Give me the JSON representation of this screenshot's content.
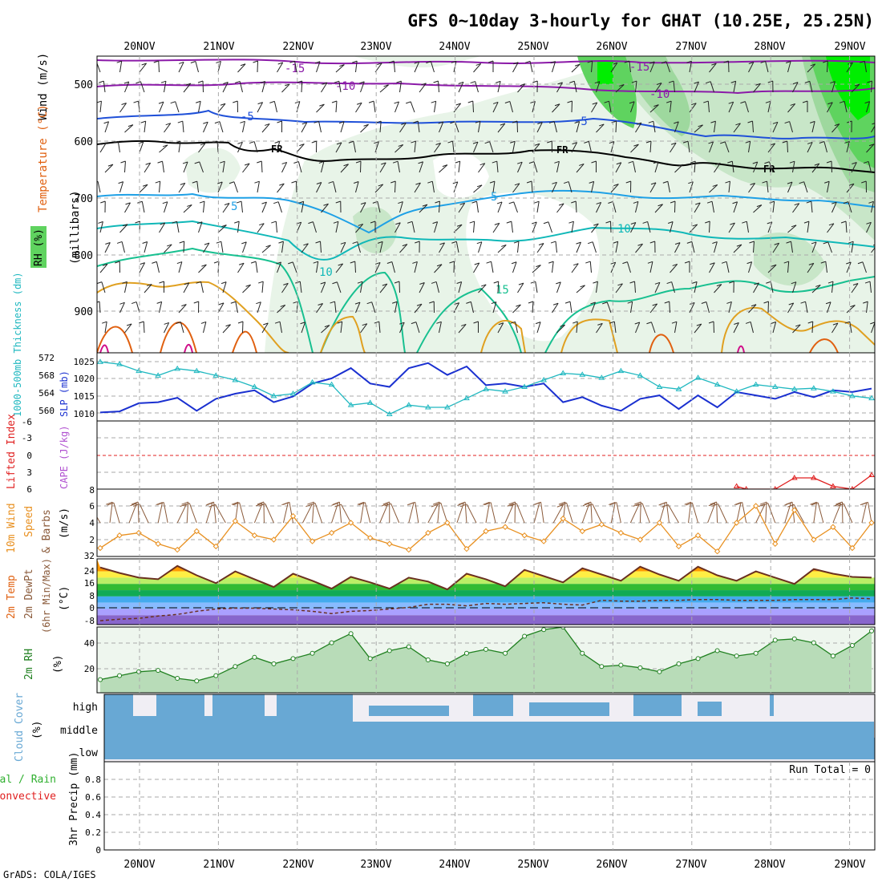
{
  "title": "GFS 0~10day 3-hourly for GHAT (10.25E, 25.25N)",
  "credit": "GrADS: COLA/IGES",
  "colors": {
    "frame": "#000000",
    "grid": "#aaaaaa",
    "rh_light": "#e8f4e8",
    "rh_mid": "#c8e6c8",
    "rh_dark": "#9ed89e",
    "rh_green": "#5fd35f",
    "rh_bright": "#00ee00",
    "temp_purple": "#8b1aa8",
    "temp_blue": "#1f50d8",
    "temp_lightblue": "#1ea0e6",
    "temp_cyan": "#10b8b8",
    "temp_teal": "#18c090",
    "temp_orange": "#e0a020",
    "temp_darkorange": "#e06010",
    "temp_magenta": "#d0108a",
    "slp": "#1a30d0",
    "thickness": "#20b8c0",
    "li": "#e02020",
    "cape": "#b050d0",
    "wind10": "#e89020",
    "barb10": "#8a5a3a",
    "rh2m_line": "#208020",
    "rh2m_fill": "#b8dcb8",
    "cloud": "#68a8d4",
    "cloud_bg": "#f0eef4",
    "precip_total": "#30b030",
    "precip_conv": "#e02020"
  },
  "x_axis": {
    "dates": [
      "20NOV",
      "21NOV",
      "22NOV",
      "23NOV",
      "24NOV",
      "25NOV",
      "26NOV",
      "27NOV",
      "28NOV",
      "29NOV"
    ]
  },
  "panels": {
    "upper": {
      "ylabel_wind": "Wind (m/s)",
      "ylabel_temp": "Temperature (°C)",
      "ylabel_pressure": "(millibars)",
      "ylabel_rh": "RH (%)",
      "y_ticks": [
        "500",
        "600",
        "700",
        "800",
        "900"
      ]
    },
    "slp": {
      "ylabel_thk": "1000-500mb Thickness (dm)",
      "ylabel_slp": "SLP (mb)",
      "thk_ticks": [
        "572",
        "568",
        "564",
        "560"
      ],
      "slp_ticks": [
        "1025",
        "1020",
        "1015",
        "1010"
      ]
    },
    "li": {
      "ylabel_li": "Lifted Index",
      "ylabel_cape": "CAPE (J/kg)",
      "y_ticks": [
        "-6",
        "-3",
        "0",
        "3",
        "6"
      ]
    },
    "wind10": {
      "ylabel_a": "10m Wind",
      "ylabel_b": "Speed",
      "ylabel_c": "& Barbs",
      "ylabel_unit": "(m/s)",
      "y_ticks": [
        "8",
        "6",
        "4",
        "2"
      ]
    },
    "temp2m": {
      "ylabel_a": "2m Temp",
      "ylabel_b": "2m DewPt",
      "ylabel_c": "(6hr Min/Max)",
      "ylabel_unit": "(°C)",
      "y_ticks": [
        "32",
        "24",
        "16",
        "8",
        "0",
        "-8"
      ]
    },
    "rh2m": {
      "ylabel": "2m RH",
      "ylabel_unit": "(%)",
      "y_ticks": [
        "40",
        "20"
      ]
    },
    "cloud": {
      "ylabel": "Cloud Cover",
      "ylabel_unit": "(%)",
      "levels": [
        "high",
        "middle",
        "low"
      ]
    },
    "precip": {
      "ylabel_a": "Total / Rain",
      "ylabel_b": "Convective",
      "ylabel_c": "3hr Precip (mm)",
      "y_ticks": [
        "0.8",
        "0.6",
        "0.4",
        "0.2",
        "0"
      ],
      "run_total": "Run Total = 0"
    }
  },
  "chart_data": [
    {
      "type": "line",
      "title": "Temperature contours (°C)",
      "contour_labels": [
        "-15",
        "-10",
        "-5",
        "FR",
        "5",
        "10",
        "15"
      ]
    },
    {
      "type": "line",
      "title": "SLP (mb) / 1000-500mb Thickness (dm)",
      "x": [
        0,
        6,
        12,
        18,
        24,
        30,
        36,
        42,
        48,
        54,
        60,
        66,
        72,
        78,
        84,
        90,
        96,
        102,
        108,
        114,
        120,
        126,
        132,
        138,
        144,
        150,
        156,
        162,
        168,
        174,
        180,
        186,
        192,
        198,
        204,
        210,
        216,
        222,
        228,
        234,
        240
      ],
      "series": [
        {
          "name": "SLP",
          "axis": "right",
          "ylim": [
            1008,
            1028
          ],
          "values": [
            1010.5,
            1010.8,
            1013.2,
            1013.5,
            1014.8,
            1011.0,
            1014.5,
            1016.0,
            1017.0,
            1013.5,
            1015.2,
            1019.0,
            1020.5,
            1023.5,
            1019.0,
            1018.0,
            1023.5,
            1025.0,
            1021.5,
            1024.0,
            1018.5,
            1019.0,
            1018.0,
            1019.0,
            1013.5,
            1015.0,
            1012.5,
            1011.0,
            1014.5,
            1015.5,
            1011.5,
            1015.5,
            1012.0,
            1016.5,
            1015.5,
            1014.5,
            1016.5,
            1015.0,
            1017.0,
            1016.5,
            1017.5
          ]
        },
        {
          "name": "Thickness",
          "axis": "left",
          "ylim": [
            558,
            573
          ],
          "values": [
            571.0,
            570.5,
            569.0,
            568.0,
            569.5,
            569.0,
            568.0,
            567.0,
            565.5,
            563.5,
            564.0,
            566.5,
            566.0,
            561.5,
            562.0,
            559.5,
            561.5,
            561.0,
            561.0,
            563.0,
            565.0,
            564.5,
            565.5,
            567.0,
            568.5,
            568.2,
            567.5,
            569.0,
            568.0,
            565.5,
            565.0,
            567.5,
            566.0,
            564.5,
            566.0,
            565.5,
            565.0,
            565.2,
            564.5,
            563.5,
            563.0
          ]
        }
      ]
    },
    {
      "type": "line",
      "title": "Lifted Index / CAPE",
      "x": [
        0,
        240
      ],
      "reference_value": 0,
      "ylim": [
        -6,
        6
      ],
      "series": [
        {
          "name": "Lifted Index",
          "x": [
            198,
            201,
            210,
            216,
            222,
            228,
            234,
            240
          ],
          "values": [
            5.5,
            6.0,
            6.0,
            4.0,
            4.0,
            5.5,
            6.0,
            3.5
          ]
        }
      ]
    },
    {
      "type": "line",
      "title": "10m Wind Speed (m/s)",
      "ylim": [
        0,
        8
      ],
      "x": [
        0,
        6,
        12,
        18,
        24,
        30,
        36,
        42,
        48,
        54,
        60,
        66,
        72,
        78,
        84,
        90,
        96,
        102,
        108,
        114,
        120,
        126,
        132,
        138,
        144,
        150,
        156,
        162,
        168,
        174,
        180,
        186,
        192,
        198,
        204,
        210,
        216,
        222,
        228,
        234,
        240
      ],
      "series": [
        {
          "name": "Speed",
          "values": [
            1.0,
            2.5,
            2.8,
            1.5,
            0.8,
            3.0,
            1.2,
            4.2,
            2.5,
            2.0,
            4.8,
            1.8,
            2.8,
            4.0,
            2.2,
            1.5,
            0.8,
            2.8,
            4.0,
            0.9,
            3.0,
            3.5,
            2.5,
            1.8,
            4.5,
            3.0,
            3.8,
            2.8,
            2.0,
            4.0,
            1.2,
            2.5,
            0.6,
            4.0,
            6.0,
            1.5,
            5.5,
            2.0,
            3.5,
            1.0,
            4.0
          ]
        }
      ]
    },
    {
      "type": "area",
      "title": "2m Temp / DewPt (°C)",
      "ylim": [
        -10,
        32
      ],
      "x": [
        0,
        6,
        12,
        18,
        24,
        30,
        36,
        42,
        48,
        54,
        60,
        66,
        72,
        78,
        84,
        90,
        96,
        102,
        108,
        114,
        120,
        126,
        132,
        138,
        144,
        150,
        156,
        162,
        168,
        174,
        180,
        186,
        192,
        198,
        204,
        210,
        216,
        222,
        228,
        234,
        240
      ],
      "series": [
        {
          "name": "2m Temp",
          "values": [
            26.5,
            23.0,
            20.0,
            19.0,
            27.5,
            21.5,
            16.5,
            24.0,
            19.0,
            14.0,
            22.5,
            18.0,
            13.0,
            20.5,
            17.0,
            13.0,
            20.0,
            17.5,
            12.5,
            22.5,
            19.0,
            14.5,
            25.0,
            21.0,
            17.0,
            26.0,
            22.0,
            18.0,
            27.0,
            22.0,
            18.0,
            27.0,
            21.5,
            18.0,
            24.0,
            20.0,
            16.0,
            25.5,
            22.5,
            20.5,
            20.0
          ]
        },
        {
          "name": "2m DewPt",
          "values": [
            -7.5,
            -6.5,
            -6.0,
            -4.5,
            -3.5,
            -1.5,
            0.0,
            0.5,
            0.5,
            0.0,
            -0.5,
            -1.5,
            -3.0,
            -1.5,
            -1.0,
            0.0,
            1.0,
            3.0,
            3.0,
            2.0,
            3.5,
            3.0,
            3.5,
            4.0,
            3.0,
            2.5,
            5.5,
            5.0,
            5.0,
            5.5,
            5.5,
            6.0,
            6.0,
            5.5,
            5.5,
            5.5,
            6.0,
            6.0,
            6.0,
            7.0,
            6.5
          ]
        }
      ]
    },
    {
      "type": "area",
      "title": "2m RH (%)",
      "ylim": [
        0,
        50
      ],
      "x": [
        0,
        6,
        12,
        18,
        24,
        30,
        36,
        42,
        48,
        54,
        60,
        66,
        72,
        78,
        84,
        90,
        96,
        102,
        108,
        114,
        120,
        126,
        132,
        138,
        144,
        150,
        156,
        162,
        168,
        174,
        180,
        186,
        192,
        198,
        204,
        210,
        216,
        222,
        228,
        234,
        240
      ],
      "series": [
        {
          "name": "2m RH",
          "values": [
            10,
            13,
            16,
            17,
            11,
            9,
            13,
            20,
            27,
            22,
            26,
            30,
            38,
            45,
            26,
            32,
            35,
            25,
            22,
            30,
            33,
            30,
            43,
            48,
            50,
            30,
            20,
            21,
            19,
            16,
            22,
            26,
            32,
            28,
            30,
            40,
            41,
            38,
            28,
            36,
            47
          ]
        }
      ]
    },
    {
      "type": "heatmap",
      "title": "Cloud Cover (%)",
      "categories": [
        "high",
        "middle",
        "low"
      ]
    },
    {
      "type": "bar",
      "title": "3hr Precip (mm)",
      "ylim": [
        0,
        1
      ],
      "values": []
    }
  ]
}
